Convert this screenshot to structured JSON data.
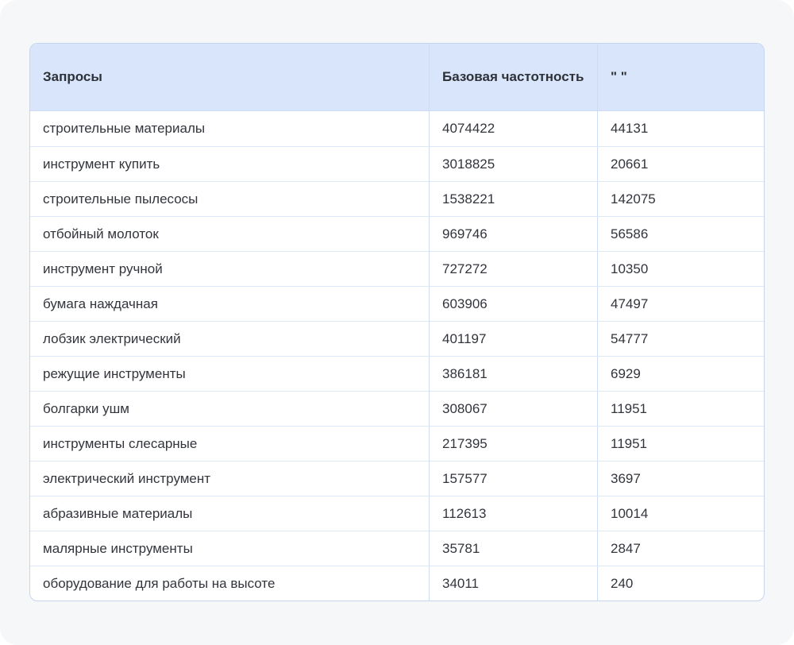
{
  "colors": {
    "canvas_bg": "#f6f7f9",
    "header_bg": "#d9e5fa",
    "table_border": "#c6d5f0",
    "row_separator": "#dde7f8",
    "text": "#32353c"
  },
  "table": {
    "columns": [
      {
        "label": "Запросы"
      },
      {
        "label": "Базовая частотность"
      },
      {
        "label": "\" \""
      }
    ],
    "rows": [
      {
        "query": "строительные материалы",
        "base": "4074422",
        "quoted": "44131"
      },
      {
        "query": "инструмент купить",
        "base": "3018825",
        "quoted": "20661"
      },
      {
        "query": "строительные пылесосы",
        "base": "1538221",
        "quoted": "142075"
      },
      {
        "query": "отбойный молоток",
        "base": "969746",
        "quoted": "56586"
      },
      {
        "query": "инструмент ручной",
        "base": "727272",
        "quoted": "10350"
      },
      {
        "query": "бумага наждачная",
        "base": "603906",
        "quoted": "47497"
      },
      {
        "query": "лобзик электрический",
        "base": "401197",
        "quoted": "54777"
      },
      {
        "query": "режущие инструменты",
        "base": "386181",
        "quoted": "6929"
      },
      {
        "query": "болгарки ушм",
        "base": "308067",
        "quoted": "11951"
      },
      {
        "query": "инструменты слесарные",
        "base": "217395",
        "quoted": "11951"
      },
      {
        "query": "электрический инструмент",
        "base": "157577",
        "quoted": "3697"
      },
      {
        "query": "абразивные материалы",
        "base": "112613",
        "quoted": "10014"
      },
      {
        "query": "малярные инструменты",
        "base": "35781",
        "quoted": "2847"
      },
      {
        "query": "оборудование для работы на высоте",
        "base": "34011",
        "quoted": "240"
      }
    ]
  }
}
